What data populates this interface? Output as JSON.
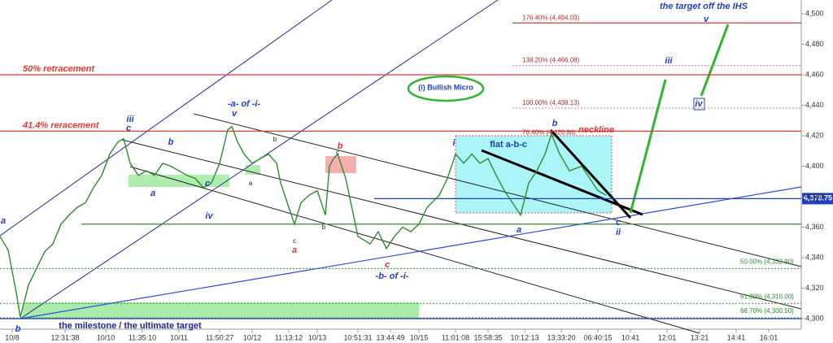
{
  "chart_data": {
    "type": "line",
    "series": [
      {
        "color": "#2e8b2e",
        "x": [
          0,
          2,
          4,
          5,
          7,
          9,
          11,
          13,
          15,
          17,
          19,
          21,
          23,
          25,
          27,
          29,
          30.4,
          32,
          34,
          36,
          38,
          40,
          42,
          44,
          46,
          48,
          50,
          52,
          54,
          56,
          57,
          58.4,
          60,
          62,
          64,
          66,
          68,
          69,
          71,
          72.4,
          74,
          76,
          78,
          80,
          81,
          82,
          83,
          85,
          88,
          91,
          93,
          95,
          97,
          99,
          101,
          103,
          105,
          108,
          110,
          112,
          114,
          116,
          118,
          120,
          122,
          124,
          126,
          128,
          130,
          132,
          134,
          135.6,
          137.6,
          140,
          143,
          145,
          147,
          149
        ],
        "values": [
          4354,
          4345,
          4317,
          4301,
          4322,
          4333,
          4344,
          4349,
          4362,
          4368,
          4373,
          4376,
          4386,
          4394,
          4408,
          4416,
          4418,
          4402,
          4394,
          4397,
          4394,
          4402,
          4400,
          4397,
          4394,
          4392,
          4386,
          4389,
          4402,
          4424,
          4426,
          4416,
          4408,
          4402,
          4405,
          4408,
          4402,
          4389,
          4373,
          4362,
          4376,
          4381,
          4384,
          4368,
          4400,
          4405,
          4408,
          4392,
          4354,
          4349,
          4357,
          4346,
          4354,
          4360,
          4357,
          4362,
          4373,
          4381,
          4392,
          4408,
          4402,
          4408,
          4402,
          4405,
          4394,
          4384,
          4376,
          4368,
          4389,
          4397,
          4408,
          4421,
          4408,
          4397,
          4400,
          4392,
          4384,
          4381
        ]
      }
    ],
    "xlim": [
      0,
      197
    ],
    "ylim": [
      4300,
      4500
    ],
    "xticks": [
      {
        "value": 3,
        "label": "10/8"
      },
      {
        "value": 16,
        "label": "12:31:38"
      },
      {
        "value": 26,
        "label": "10/10"
      },
      {
        "value": 35,
        "label": "11:35:10"
      },
      {
        "value": 44,
        "label": "10/11"
      },
      {
        "value": 54,
        "label": "11:50:27"
      },
      {
        "value": 62,
        "label": "10/12"
      },
      {
        "value": 71,
        "label": "11:13:12"
      },
      {
        "value": 78,
        "label": "10/13"
      },
      {
        "value": 88,
        "label": "10:51:31"
      },
      {
        "value": 96,
        "label": "13:44:49"
      },
      {
        "value": 103,
        "label": "10/15"
      },
      {
        "value": 112,
        "label": "11:01:08"
      },
      {
        "value": 120,
        "label": "15:58:35"
      },
      {
        "value": 129,
        "label": "10:12:13"
      },
      {
        "value": 138,
        "label": "13:33:20"
      },
      {
        "value": 147,
        "label": "06:40:15"
      },
      {
        "value": 155,
        "label": "10:41"
      },
      {
        "value": 164,
        "label": "12:01"
      },
      {
        "value": 172,
        "label": "13:21"
      },
      {
        "value": 181,
        "label": "14:41"
      },
      {
        "value": 189,
        "label": "16:01"
      }
    ],
    "yticks": [
      {
        "value": 4300,
        "label": "4,300"
      },
      {
        "value": 4320,
        "label": "4,320"
      },
      {
        "value": 4340,
        "label": "4,340"
      },
      {
        "value": 4360,
        "label": "4,360"
      },
      {
        "value": 4380,
        "label": "4,380"
      },
      {
        "value": 4400,
        "label": "4,400"
      },
      {
        "value": 4420,
        "label": "4,420"
      },
      {
        "value": 4440,
        "label": "4,440"
      },
      {
        "value": 4460,
        "label": "4,460"
      },
      {
        "value": 4480,
        "label": "4,480"
      },
      {
        "value": 4500,
        "label": "4,500"
      }
    ],
    "levels": [
      {
        "value": 4494.03,
        "label": "176.40% (4,494.03)",
        "color": "#c62828",
        "style": "solid"
      },
      {
        "value": 4466.08,
        "label": "138.20% (4,466.08)",
        "color": "#d98080",
        "style": "dotted"
      },
      {
        "value": 4460,
        "label": "50% retracement",
        "color": "#e53935",
        "style": "solid"
      },
      {
        "value": 4438.13,
        "label": "100.00% (4,438.13)",
        "color": "#d98080",
        "style": "dotted"
      },
      {
        "value": 4423,
        "label": "41.4% reracement",
        "color": "#e53935",
        "style": "solid"
      },
      {
        "value": 4420.86,
        "label": "76.40% (4,420.86)",
        "color": "#d98080",
        "style": "dotted"
      },
      {
        "value": 4332.9,
        "label": "50.00% (4,332.90)",
        "color": "#2e8b2e",
        "style": "dotted"
      },
      {
        "value": 4310.0,
        "label": "61.80% (4,310.00)",
        "color": "#2e8b2e",
        "style": "dotted"
      },
      {
        "value": 4300.5,
        "label": "66.70% (4,300.50)",
        "color": "#2e8b2e",
        "style": "dotted"
      },
      {
        "value": 4378.75,
        "label": "4,378.75",
        "color": "#1f3fbf",
        "style": "solid"
      },
      {
        "value": 4362,
        "color": "#2e8b2e",
        "style": "solid"
      },
      {
        "value": 4300,
        "color": "#1f3fbf",
        "style": "solid"
      }
    ],
    "annotations": [
      "a",
      "b",
      "iii",
      "c",
      "b",
      "a",
      "c",
      "iv",
      "-a- of -i-",
      "v",
      "a",
      "b",
      "c",
      "a",
      "b",
      "c",
      "b",
      "c",
      "-b- of -i-",
      "i",
      "(i) Bullish Micro",
      "flat a-b-c",
      "b",
      "neckline",
      "a",
      "c",
      "ii",
      "iii",
      "iv",
      "v",
      "the target off the IHS",
      "the milestone / the ultimate target"
    ]
  }
}
